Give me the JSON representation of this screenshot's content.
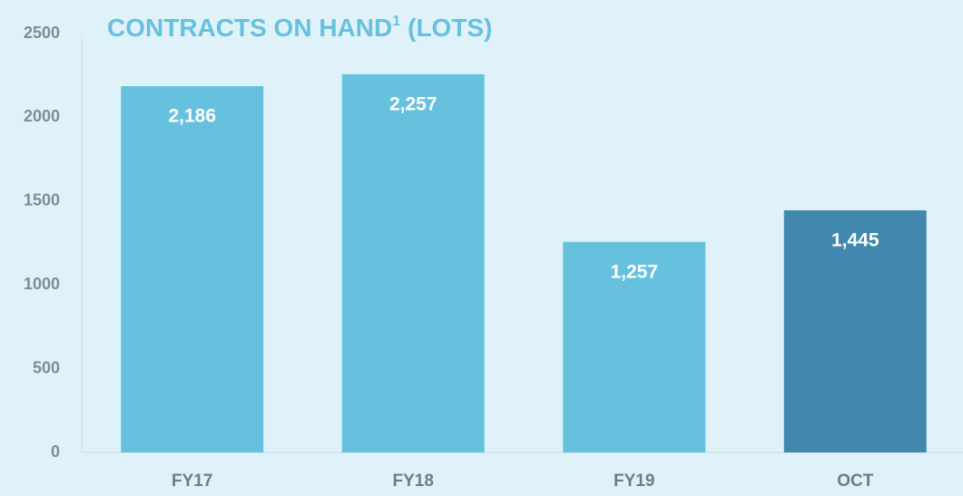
{
  "chart_data": {
    "type": "bar",
    "title": "CONTRACTS ON HAND",
    "title_footnote": "1",
    "title_unit": "(LOTS)",
    "categories": [
      "FY17",
      "FY18",
      "FY19",
      "OCT"
    ],
    "values": [
      2186,
      2257,
      1257,
      1445
    ],
    "value_labels": [
      "2,186",
      "2,257",
      "1,257",
      "1,445"
    ],
    "colors": [
      "#66c1df",
      "#66c1df",
      "#66c1df",
      "#4288ae"
    ],
    "ylim": [
      0,
      2500
    ],
    "yticks": [
      0,
      500,
      1000,
      1500,
      2000,
      2500
    ],
    "grid": false
  }
}
